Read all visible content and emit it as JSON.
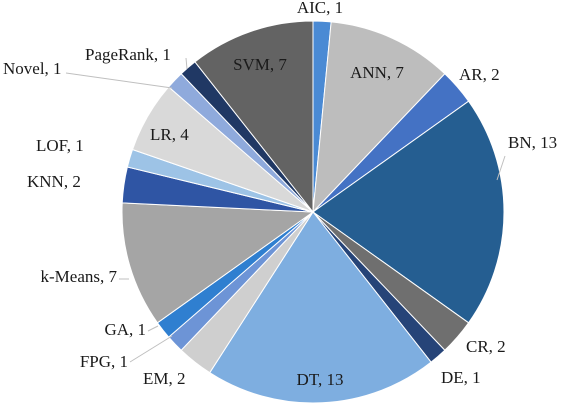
{
  "chart_data": {
    "type": "pie",
    "title": "",
    "start_angle_deg": 0,
    "direction": "clockwise",
    "slices": [
      {
        "label": "AIC, 1",
        "name": "AIC",
        "value": 1,
        "color": "#4a8ad4"
      },
      {
        "label": "ANN, 7",
        "name": "ANN",
        "value": 7,
        "color": "#bdbdbd"
      },
      {
        "label": "AR, 2",
        "name": "AR",
        "value": 2,
        "color": "#4472c4"
      },
      {
        "label": "BN, 13",
        "name": "BN",
        "value": 13,
        "color": "#255e91"
      },
      {
        "label": "CR, 2",
        "name": "CR, 2",
        "value": 2,
        "color": "#6f6f6f"
      },
      {
        "label": "DE, 1",
        "name": "DE",
        "value": 1,
        "color": "#264478"
      },
      {
        "label": "DT, 13",
        "name": "DT",
        "value": 13,
        "color": "#7eaee0"
      },
      {
        "label": "EM, 2",
        "name": "EM",
        "value": 2,
        "color": "#cfcfcf"
      },
      {
        "label": "FPG, 1",
        "name": "FPG",
        "value": 1,
        "color": "#6d94d6"
      },
      {
        "label": "GA, 1",
        "name": "GA",
        "value": 1,
        "color": "#2f7fd0"
      },
      {
        "label": "k-Means, 7",
        "name": "k-Means",
        "value": 7,
        "color": "#a5a5a5"
      },
      {
        "label": "KNN, 2",
        "name": "KNN",
        "value": 2,
        "color": "#2f55a4"
      },
      {
        "label": "LOF, 1",
        "name": "LOF",
        "value": 1,
        "color": "#9dc3e6"
      },
      {
        "label": "LR, 4",
        "name": "LR",
        "value": 4,
        "color": "#d9d9d9"
      },
      {
        "label": "Novel, 1",
        "name": "Novel",
        "value": 1,
        "color": "#8faadc"
      },
      {
        "label": "PageRank, 1",
        "name": "PageRank",
        "value": 1,
        "color": "#203864"
      },
      {
        "label": "SVM, 7",
        "name": "SVM",
        "value": 7,
        "color": "#636363"
      }
    ]
  }
}
